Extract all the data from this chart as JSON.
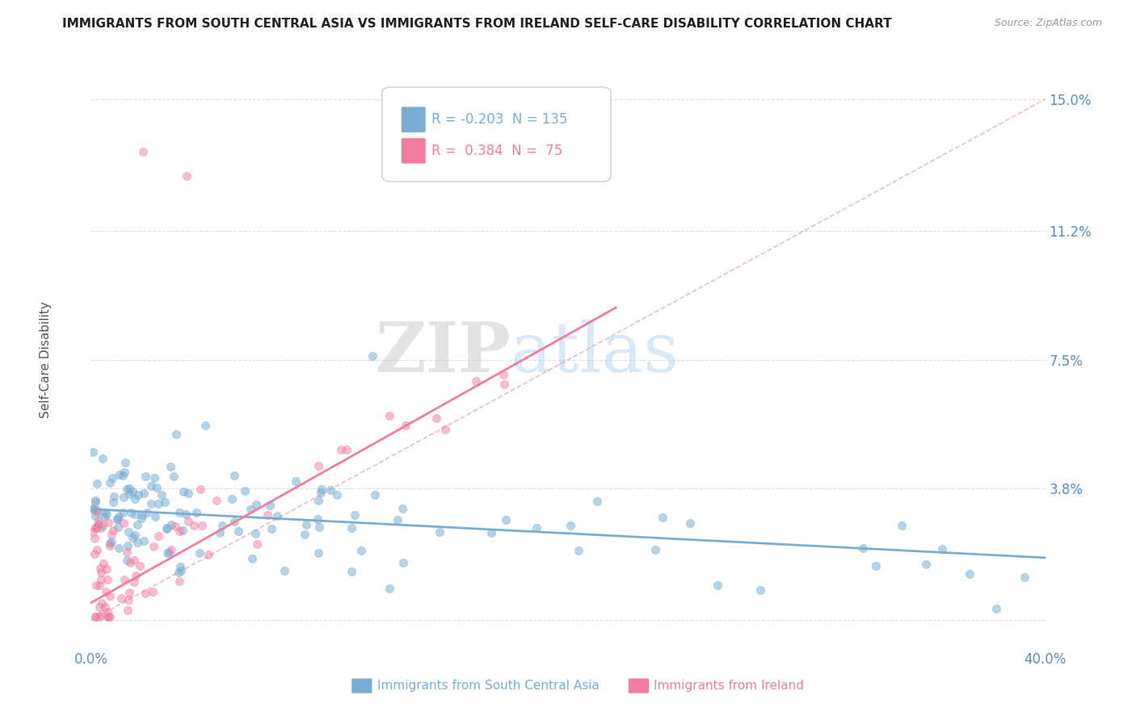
{
  "title": "IMMIGRANTS FROM SOUTH CENTRAL ASIA VS IMMIGRANTS FROM IRELAND SELF-CARE DISABILITY CORRELATION CHART",
  "source": "Source: ZipAtlas.com",
  "xlabel_blue": "Immigrants from South Central Asia",
  "xlabel_pink": "Immigrants from Ireland",
  "ylabel": "Self-Care Disability",
  "xmin": 0.0,
  "xmax": 0.4,
  "ymin": -0.008,
  "ymax": 0.162,
  "yticks": [
    0.0,
    0.038,
    0.075,
    0.112,
    0.15
  ],
  "ytick_labels": [
    "",
    "3.8%",
    "7.5%",
    "11.2%",
    "15.0%"
  ],
  "xticks": [
    0.0,
    0.1,
    0.2,
    0.3,
    0.4
  ],
  "xtick_labels": [
    "0.0%",
    "",
    "",
    "",
    "40.0%"
  ],
  "blue_color": "#7aadd4",
  "pink_color": "#f07ca0",
  "blue_R": -0.203,
  "blue_N": 135,
  "pink_R": 0.384,
  "pink_N": 75,
  "blue_trend": [
    0.0,
    0.032,
    0.4,
    0.018
  ],
  "pink_trend": [
    0.0,
    0.005,
    0.22,
    0.09
  ],
  "diag_line": [
    0.0,
    0.0,
    0.4,
    0.15
  ],
  "watermark_zip": "ZIP",
  "watermark_atlas": "atlas",
  "title_fontsize": 11,
  "axis_label_color": "#555555",
  "tick_color": "#5b8db8",
  "grid_color": "#d8dde8",
  "background_color": "#FFFFFF",
  "legend_blue_text": "R = -0.203  N = 135",
  "legend_pink_text": "R =  0.384  N =  75"
}
